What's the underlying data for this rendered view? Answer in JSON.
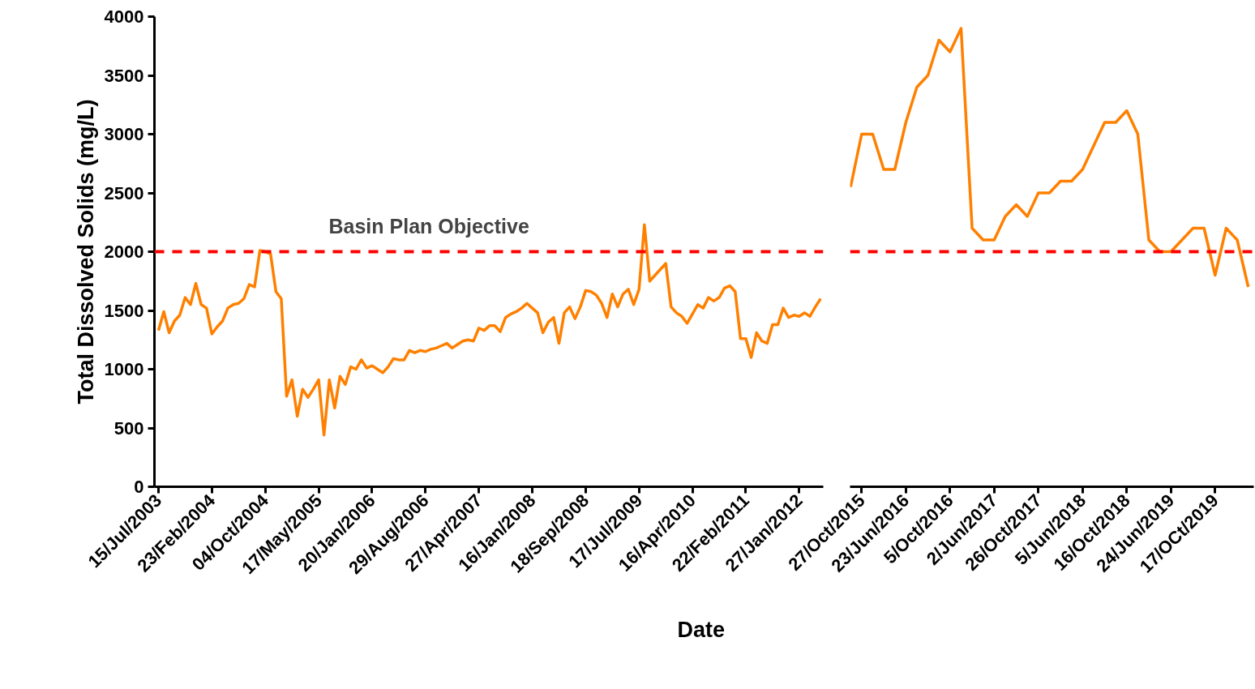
{
  "chart_data": [
    {
      "type": "line",
      "ylabel": "Total Dissolved Solids (mg/L)",
      "xlabel": "Date",
      "categories": [
        "15/Jul/2003",
        null,
        null,
        null,
        null,
        null,
        null,
        null,
        null,
        null,
        "23/Feb/2004",
        null,
        null,
        null,
        null,
        null,
        null,
        null,
        null,
        null,
        "04/Oct/2004",
        null,
        null,
        null,
        null,
        null,
        null,
        null,
        null,
        null,
        "17/May/2005",
        null,
        null,
        null,
        null,
        null,
        null,
        null,
        null,
        null,
        "20/Jan/2006",
        null,
        null,
        null,
        null,
        null,
        null,
        null,
        null,
        null,
        "29/Aug/2006",
        null,
        null,
        null,
        null,
        null,
        null,
        null,
        null,
        null,
        "27/Apr/2007",
        null,
        null,
        null,
        null,
        null,
        null,
        null,
        null,
        null,
        "16/Jan/2008",
        null,
        null,
        null,
        null,
        null,
        null,
        null,
        null,
        null,
        "18/Sep/2008",
        null,
        null,
        null,
        null,
        null,
        null,
        null,
        null,
        null,
        "17/Jul/2009",
        null,
        null,
        null,
        null,
        null,
        null,
        null,
        null,
        null,
        "16/Apr/2010",
        null,
        null,
        null,
        null,
        null,
        null,
        null,
        null,
        null,
        "22/Feb/2011",
        null,
        null,
        null,
        null,
        null,
        null,
        null,
        null,
        null,
        "27/Jan/2012",
        null,
        null,
        null,
        null
      ],
      "series": [
        {
          "color": "#ff8000",
          "values": [
            1330,
            1490,
            1310,
            1410,
            1460,
            1610,
            1550,
            1730,
            1550,
            1520,
            1300,
            1360,
            1410,
            1520,
            1550,
            1560,
            1600,
            1720,
            1700,
            2010,
            2000,
            1980,
            1660,
            1600,
            770,
            910,
            600,
            830,
            760,
            830,
            910,
            440,
            910,
            670,
            940,
            870,
            1020,
            1000,
            1080,
            1010,
            1030,
            1000,
            970,
            1020,
            1090,
            1080,
            1080,
            1160,
            1140,
            1160,
            1150,
            1170,
            1180,
            1200,
            1220,
            1180,
            1210,
            1240,
            1250,
            1240,
            1350,
            1330,
            1370,
            1370,
            1320,
            1440,
            1470,
            1490,
            1520,
            1560,
            1520,
            1480,
            1310,
            1400,
            1440,
            1220,
            1480,
            1530,
            1430,
            1530,
            1670,
            1660,
            1630,
            1560,
            1440,
            1640,
            1530,
            1640,
            1680,
            1550,
            1680,
            2230,
            1750,
            1800,
            1850,
            1900,
            1530,
            1480,
            1450,
            1390,
            1470,
            1550,
            1520,
            1610,
            1580,
            1610,
            1690,
            1710,
            1660,
            1260,
            1260,
            1100,
            1310,
            1240,
            1220,
            1380,
            1380,
            1520,
            1440,
            1460,
            1450,
            1480,
            1450,
            1530,
            1600
          ]
        }
      ],
      "ylim": [
        0,
        4000
      ],
      "yticks": [
        0,
        500,
        1000,
        1500,
        2000,
        2500,
        3000,
        3500,
        4000
      ],
      "grid": false,
      "ref_lines": [
        {
          "axis": "y",
          "value": 2000,
          "label": "Basin Plan Objective",
          "color": "#ff0000",
          "line_style": "dashed"
        }
      ]
    },
    {
      "type": "line",
      "categories": [
        null,
        "27/Oct/2015",
        null,
        null,
        null,
        "23/Jun/2016",
        null,
        null,
        null,
        "5/Oct/2016",
        null,
        null,
        null,
        "2/Jun/2017",
        null,
        null,
        null,
        "26/Oct/2017",
        null,
        null,
        null,
        "5/Jun/2018",
        null,
        null,
        null,
        "16/Oct/2018",
        null,
        null,
        null,
        "24/Jun/2019",
        null,
        null,
        null,
        "17/OCt/2019",
        null,
        null,
        null
      ],
      "series": [
        {
          "color": "#ff8000",
          "values": [
            2550,
            3000,
            3000,
            2700,
            2700,
            3100,
            3400,
            3500,
            3800,
            3700,
            3900,
            2200,
            2100,
            2100,
            2300,
            2400,
            2300,
            2500,
            2500,
            2600,
            2600,
            2700,
            2900,
            3100,
            3100,
            3200,
            3000,
            2100,
            2000,
            2000,
            2100,
            2200,
            2200,
            1800,
            2200,
            2100,
            1700
          ]
        }
      ],
      "ylim": [
        0,
        4000
      ],
      "tick_labels": "x",
      "grid": false,
      "ref_lines": [
        {
          "axis": "y",
          "value": 2000,
          "color": "#ff0000",
          "line_style": "dashed"
        }
      ]
    }
  ]
}
